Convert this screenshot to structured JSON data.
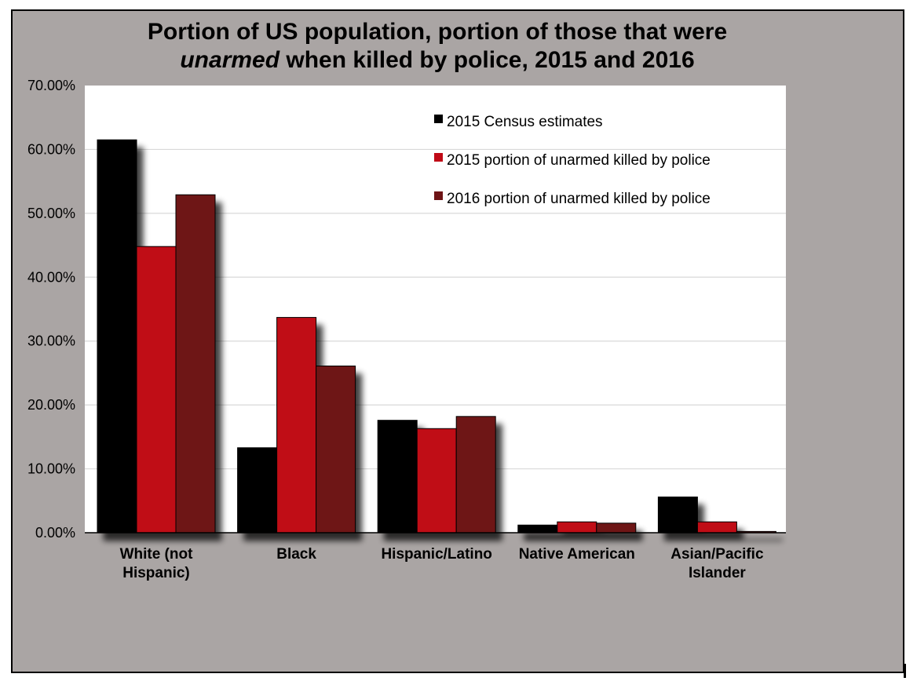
{
  "chart_data": {
    "type": "bar",
    "title_lines": [
      "Portion of US population, portion of those that were",
      [
        "unarmed",
        " when killed by police, 2015 and 2016"
      ]
    ],
    "categories": [
      [
        "White (not",
        "Hispanic)"
      ],
      [
        "Black"
      ],
      [
        "Hispanic/Latino"
      ],
      [
        "Native American"
      ],
      [
        "Asian/Pacific",
        "Islander"
      ]
    ],
    "series": [
      {
        "name": "2015 Census estimates",
        "color": "#000000",
        "values": [
          61.5,
          13.3,
          17.6,
          1.2,
          5.6
        ]
      },
      {
        "name": "2015 portion of unarmed killed by police",
        "color": "#c00916",
        "values": [
          44.8,
          33.7,
          16.3,
          1.7,
          1.7
        ]
      },
      {
        "name": "2016 portion of unarmed killed by police",
        "color": "#6e1416",
        "values": [
          52.9,
          26.1,
          18.2,
          1.5,
          0.2
        ]
      }
    ],
    "yticks": [
      "0.00%",
      "10.00%",
      "20.00%",
      "30.00%",
      "40.00%",
      "50.00%",
      "60.00%",
      "70.00%"
    ],
    "ylim": [
      0,
      70
    ],
    "xlabel": "",
    "ylabel": "",
    "legend_position": "top-right",
    "grid": true
  }
}
